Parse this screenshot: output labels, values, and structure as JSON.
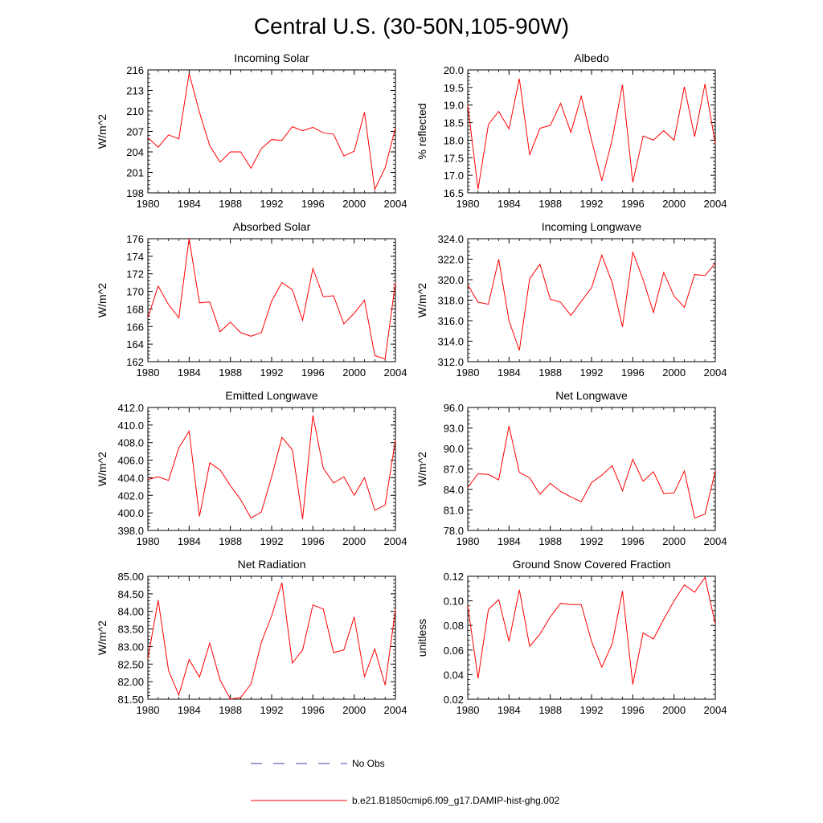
{
  "figure": {
    "title": "Central U.S. (30-50N,105-90W)",
    "line_color": "#ff0000",
    "obs_color": "#3a3aa0",
    "legend": {
      "obs_label": "No Obs",
      "model_label": "b.e21.B1850cmip6.f09_g17.DAMIP-hist-ghg.002"
    }
  },
  "chart_data": [
    {
      "type": "line",
      "title": "Incoming Solar",
      "ylabel": "W/m^2",
      "ylim": [
        198,
        216
      ],
      "yticks": [
        "198",
        "201",
        "204",
        "207",
        "210",
        "213",
        "216"
      ],
      "xlim": [
        1980,
        2004
      ],
      "xticks": [
        "1980",
        "1984",
        "1988",
        "1992",
        "1996",
        "2000",
        "2004"
      ],
      "series": [
        {
          "x": [
            1980,
            1981,
            1982,
            1983,
            1984,
            1985,
            1986,
            1987,
            1988,
            1989,
            1990,
            1991,
            1992,
            1993,
            1994,
            1995,
            1996,
            1997,
            1998,
            1999,
            2000,
            2001,
            2002,
            2003,
            2004
          ],
          "values": [
            206.1,
            204.7,
            206.5,
            205.9,
            215.5,
            209.8,
            204.9,
            202.5,
            204.0,
            204.0,
            201.6,
            204.5,
            205.8,
            205.7,
            207.7,
            207.1,
            207.6,
            206.8,
            206.6,
            203.4,
            204.1,
            209.8,
            198.5,
            201.7,
            207.5
          ]
        }
      ]
    },
    {
      "type": "line",
      "title": "Albedo",
      "ylabel": "% reflected",
      "ylim": [
        16.5,
        20.0
      ],
      "yticks": [
        "16.5",
        "17.0",
        "17.5",
        "18.0",
        "18.5",
        "19.0",
        "19.5",
        "20.0"
      ],
      "xlim": [
        1980,
        2004
      ],
      "xticks": [
        "1980",
        "1984",
        "1988",
        "1992",
        "1996",
        "2000",
        "2004"
      ],
      "series": [
        {
          "x": [
            1980,
            1981,
            1982,
            1983,
            1984,
            1985,
            1986,
            1987,
            1988,
            1989,
            1990,
            1991,
            1992,
            1993,
            1994,
            1995,
            1996,
            1997,
            1998,
            1999,
            2000,
            2001,
            2002,
            2003,
            2004
          ],
          "values": [
            19.0,
            16.6,
            18.45,
            18.82,
            18.32,
            19.75,
            17.58,
            18.34,
            18.42,
            19.05,
            18.22,
            19.25,
            18.0,
            16.85,
            18.02,
            19.58,
            16.8,
            18.12,
            18.0,
            18.27,
            18.0,
            19.52,
            18.1,
            19.6,
            17.9
          ]
        }
      ]
    },
    {
      "type": "line",
      "title": "Absorbed Solar",
      "ylabel": "W/m^2",
      "ylim": [
        162,
        176
      ],
      "yticks": [
        "162",
        "164",
        "166",
        "168",
        "170",
        "172",
        "174",
        "176"
      ],
      "xlim": [
        1980,
        2004
      ],
      "xticks": [
        "1980",
        "1984",
        "1988",
        "1992",
        "1996",
        "2000",
        "2004"
      ],
      "series": [
        {
          "x": [
            1980,
            1981,
            1982,
            1983,
            1984,
            1985,
            1986,
            1987,
            1988,
            1989,
            1990,
            1991,
            1992,
            1993,
            1994,
            1995,
            1996,
            1997,
            1998,
            1999,
            2000,
            2001,
            2002,
            2003,
            2004
          ],
          "values": [
            167.0,
            170.6,
            168.5,
            167.0,
            176.0,
            168.7,
            168.8,
            165.4,
            166.5,
            165.3,
            164.9,
            165.3,
            168.9,
            171.0,
            170.2,
            166.7,
            172.6,
            169.4,
            169.5,
            166.3,
            167.5,
            169.0,
            162.7,
            162.3,
            171.0
          ]
        }
      ]
    },
    {
      "type": "line",
      "title": "Incoming Longwave",
      "ylabel": "W/m^2",
      "ylim": [
        312.0,
        324.0
      ],
      "yticks": [
        "312.0",
        "314.0",
        "316.0",
        "318.0",
        "320.0",
        "322.0",
        "324.0"
      ],
      "xlim": [
        1980,
        2004
      ],
      "xticks": [
        "1980",
        "1984",
        "1988",
        "1992",
        "1996",
        "2000",
        "2004"
      ],
      "series": [
        {
          "x": [
            1980,
            1981,
            1982,
            1983,
            1984,
            1985,
            1986,
            1987,
            1988,
            1989,
            1990,
            1991,
            1992,
            1993,
            1994,
            1995,
            1996,
            1997,
            1998,
            1999,
            2000,
            2001,
            2002,
            2003,
            2004
          ],
          "values": [
            319.5,
            317.8,
            317.6,
            322.0,
            316.0,
            313.1,
            320.1,
            321.5,
            318.1,
            317.8,
            316.5,
            317.9,
            319.2,
            322.4,
            319.7,
            315.4,
            322.7,
            320.0,
            316.8,
            320.7,
            318.4,
            317.3,
            320.5,
            320.4,
            321.6
          ]
        }
      ]
    },
    {
      "type": "line",
      "title": "Emitted Longwave",
      "ylabel": "W/m^2",
      "ylim": [
        398.0,
        412.0
      ],
      "yticks": [
        "398.0",
        "400.0",
        "402.0",
        "404.0",
        "406.0",
        "408.0",
        "410.0",
        "412.0"
      ],
      "xlim": [
        1980,
        2004
      ],
      "xticks": [
        "1980",
        "1984",
        "1988",
        "1992",
        "1996",
        "2000",
        "2004"
      ],
      "series": [
        {
          "x": [
            1980,
            1981,
            1982,
            1983,
            1984,
            1985,
            1986,
            1987,
            1988,
            1989,
            1990,
            1991,
            1992,
            1993,
            1994,
            1995,
            1996,
            1997,
            1998,
            1999,
            2000,
            2001,
            2002,
            2003,
            2004
          ],
          "values": [
            403.8,
            404.1,
            403.7,
            407.4,
            409.3,
            399.6,
            405.7,
            404.9,
            403.1,
            401.5,
            399.4,
            400.1,
            404.1,
            408.6,
            407.2,
            399.3,
            411.1,
            405.1,
            403.4,
            404.1,
            402.0,
            404.0,
            400.3,
            400.9,
            408.3
          ]
        }
      ]
    },
    {
      "type": "line",
      "title": "Net Longwave",
      "ylabel": "W/m^2",
      "ylim": [
        78.0,
        96.0
      ],
      "yticks": [
        "78.0",
        "81.0",
        "84.0",
        "87.0",
        "90.0",
        "93.0",
        "96.0"
      ],
      "xlim": [
        1980,
        2004
      ],
      "xticks": [
        "1980",
        "1984",
        "1988",
        "1992",
        "1996",
        "2000",
        "2004"
      ],
      "series": [
        {
          "x": [
            1980,
            1981,
            1982,
            1983,
            1984,
            1985,
            1986,
            1987,
            1988,
            1989,
            1990,
            1991,
            1992,
            1993,
            1994,
            1995,
            1996,
            1997,
            1998,
            1999,
            2000,
            2001,
            2002,
            2003,
            2004
          ],
          "values": [
            84.3,
            86.3,
            86.2,
            85.4,
            93.3,
            86.5,
            85.7,
            83.3,
            84.9,
            83.7,
            82.9,
            82.2,
            85.0,
            86.1,
            87.5,
            83.8,
            88.4,
            85.2,
            86.6,
            83.4,
            83.5,
            86.7,
            79.8,
            80.4,
            86.7
          ]
        }
      ]
    },
    {
      "type": "line",
      "title": "Net Radiation",
      "ylabel": "W/m^2",
      "ylim": [
        81.5,
        85.0
      ],
      "yticks": [
        "81.50",
        "82.00",
        "82.50",
        "83.00",
        "83.50",
        "84.00",
        "84.50",
        "85.00"
      ],
      "xlim": [
        1980,
        2004
      ],
      "xticks": [
        "1980",
        "1984",
        "1988",
        "1992",
        "1996",
        "2000",
        "2004"
      ],
      "series": [
        {
          "x": [
            1980,
            1981,
            1982,
            1983,
            1984,
            1985,
            1986,
            1987,
            1988,
            1989,
            1990,
            1991,
            1992,
            1993,
            1994,
            1995,
            1996,
            1997,
            1998,
            1999,
            2000,
            2001,
            2002,
            2003,
            2004
          ],
          "values": [
            82.65,
            84.32,
            82.32,
            81.62,
            82.63,
            82.13,
            83.1,
            82.05,
            81.5,
            81.55,
            81.93,
            83.12,
            83.88,
            84.82,
            82.53,
            82.9,
            84.18,
            84.07,
            82.83,
            82.9,
            83.84,
            82.14,
            82.93,
            81.9,
            84.05
          ]
        }
      ]
    },
    {
      "type": "line",
      "title": "Ground Snow Covered Fraction",
      "ylabel": "unitless",
      "ylim": [
        0.02,
        0.12
      ],
      "yticks": [
        "0.02",
        "0.04",
        "0.06",
        "0.08",
        "0.10",
        "0.12"
      ],
      "xlim": [
        1980,
        2004
      ],
      "xticks": [
        "1980",
        "1984",
        "1988",
        "1992",
        "1996",
        "2000",
        "2004"
      ],
      "series": [
        {
          "x": [
            1980,
            1981,
            1982,
            1983,
            1984,
            1985,
            1986,
            1987,
            1988,
            1989,
            1990,
            1991,
            1992,
            1993,
            1994,
            1995,
            1996,
            1997,
            1998,
            1999,
            2000,
            2001,
            2002,
            2003,
            2004
          ],
          "values": [
            0.096,
            0.037,
            0.093,
            0.101,
            0.067,
            0.109,
            0.063,
            0.073,
            0.087,
            0.098,
            0.097,
            0.097,
            0.067,
            0.046,
            0.065,
            0.108,
            0.032,
            0.074,
            0.069,
            0.085,
            0.1,
            0.113,
            0.107,
            0.119,
            0.081
          ]
        }
      ]
    }
  ]
}
